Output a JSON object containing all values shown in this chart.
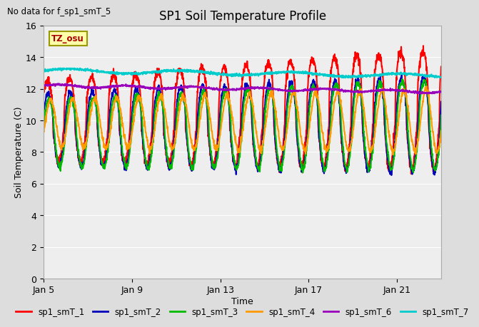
{
  "title": "SP1 Soil Temperature Profile",
  "xlabel": "Time",
  "ylabel": "Soil Temperature (C)",
  "note": "No data for f_sp1_smT_5",
  "tz_label": "TZ_osu",
  "ylim": [
    0,
    16
  ],
  "yticks": [
    0,
    2,
    4,
    6,
    8,
    10,
    12,
    14,
    16
  ],
  "xtick_labels": [
    "Jan 5",
    "Jan 9",
    "Jan 13",
    "Jan 17",
    "Jan 21"
  ],
  "xtick_positions": [
    0,
    4,
    8,
    12,
    16
  ],
  "xlim": [
    0,
    18
  ],
  "legend": [
    {
      "label": "sp1_smT_1",
      "color": "#FF0000"
    },
    {
      "label": "sp1_smT_2",
      "color": "#0000BB"
    },
    {
      "label": "sp1_smT_3",
      "color": "#00BB00"
    },
    {
      "label": "sp1_smT_4",
      "color": "#FF9900"
    },
    {
      "label": "sp1_smT_6",
      "color": "#9900BB"
    },
    {
      "label": "sp1_smT_7",
      "color": "#00CCCC"
    }
  ],
  "bg_color": "#DDDDDD",
  "plot_bg_color": "#EEEEEE",
  "grid_color": "#FFFFFF",
  "linewidth": 1.5
}
